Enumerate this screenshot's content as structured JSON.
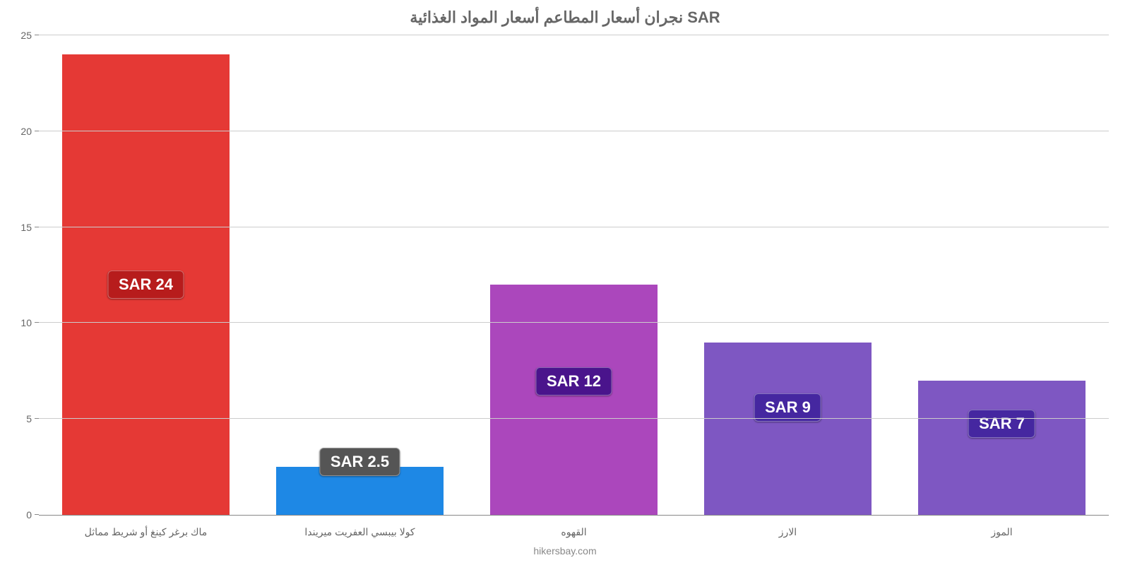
{
  "chart": {
    "type": "bar",
    "title": "نجران أسعار المطاعم أسعار المواد الغذائية SAR",
    "title_fontsize": 22,
    "title_color": "#666666",
    "attribution": "hikersbay.com",
    "background_color": "#ffffff",
    "grid_color": "#cccccc",
    "axis_color": "#888888",
    "y": {
      "min": 0,
      "max": 25,
      "step": 5,
      "ticks": [
        0,
        5,
        10,
        15,
        20,
        25
      ],
      "label_color": "#666666",
      "label_fontsize": 14
    },
    "x": {
      "label_color": "#666666",
      "label_fontsize": 14
    },
    "bar_width_pct": 78,
    "bars": [
      {
        "category": "ماك برغر كينغ أو شريط مماثل",
        "value": 24,
        "value_label": "SAR 24",
        "bar_color": "#e53935",
        "badge_color": "#b71c1c",
        "badge_top_pct": 50
      },
      {
        "category": "كولا بيبسي العفريت ميريندا",
        "value": 2.5,
        "value_label": "SAR 2.5",
        "bar_color": "#1e88e5",
        "badge_color": "#555555",
        "badge_top_pct": -10
      },
      {
        "category": "القهوه",
        "value": 12,
        "value_label": "SAR 12",
        "bar_color": "#ab47bc",
        "badge_color": "#4a148c",
        "badge_top_pct": 42
      },
      {
        "category": "الارز",
        "value": 9,
        "value_label": "SAR 9",
        "bar_color": "#7e57c2",
        "badge_color": "#4527a0",
        "badge_top_pct": 38
      },
      {
        "category": "الموز",
        "value": 7,
        "value_label": "SAR 7",
        "bar_color": "#7e57c2",
        "badge_color": "#4527a0",
        "badge_top_pct": 32
      }
    ]
  }
}
